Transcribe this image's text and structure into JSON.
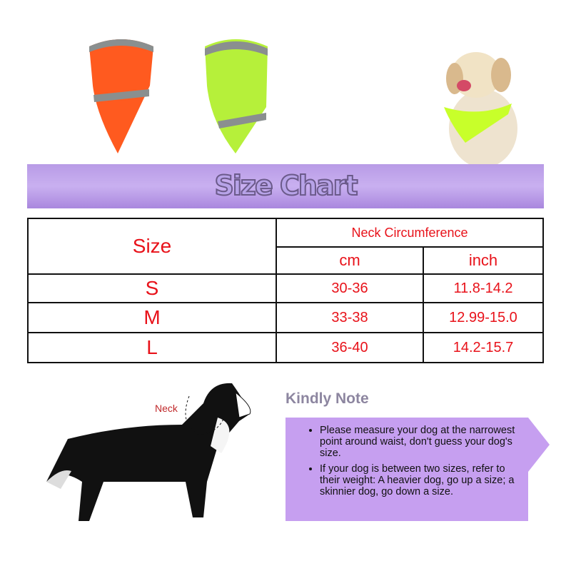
{
  "products": {
    "orange_color": "#ff5a1f",
    "green_color": "#b6f03a"
  },
  "banner": {
    "title": "Size Chart"
  },
  "table": {
    "size_header": "Size",
    "group_header": "Neck Circumference",
    "col_cm": "cm",
    "col_inch": "inch",
    "rows": [
      {
        "size": "S",
        "cm": "30-36",
        "inch": "11.8-14.2"
      },
      {
        "size": "M",
        "cm": "33-38",
        "inch": "12.99-15.0"
      },
      {
        "size": "L",
        "cm": "36-40",
        "inch": "14.2-15.7"
      }
    ]
  },
  "diagram": {
    "neck_label": "Neck"
  },
  "note": {
    "title": "Kindly Note",
    "items": [
      "Please measure your dog at the narrowest point around waist, don't guess your dog's size.",
      "If your dog is between two sizes, refer to their weight: A heavier dog, go up a size; a skinnier dog, go down a size."
    ]
  }
}
